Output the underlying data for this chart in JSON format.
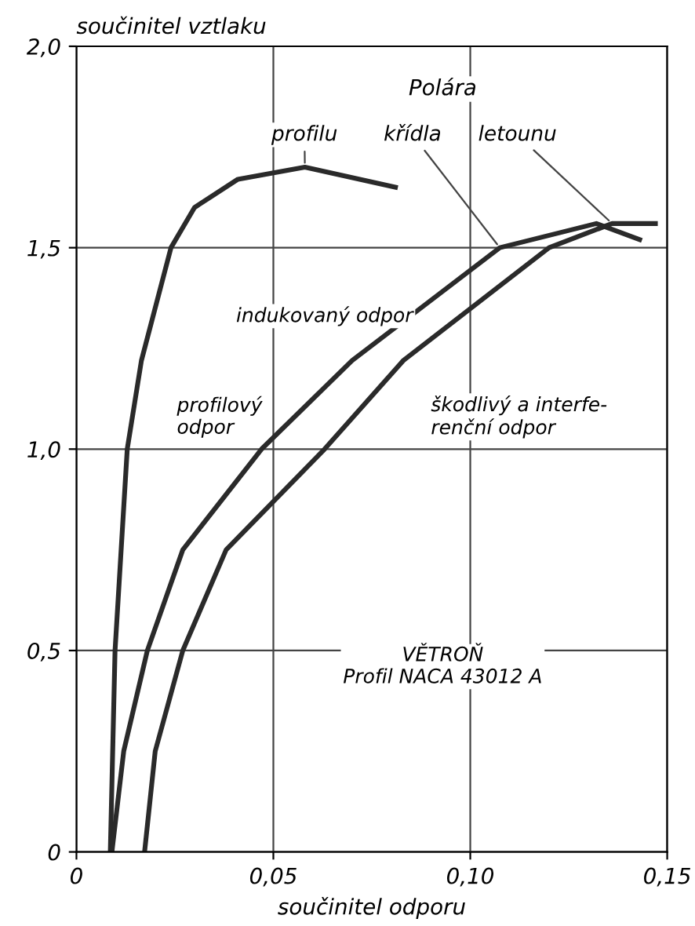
{
  "chart_data": {
    "type": "line",
    "title": "Polára",
    "xlabel": "součinitel odporu",
    "ylabel": "součinitel vztlaku",
    "xlim": [
      0,
      0.15
    ],
    "ylim": [
      0,
      2.0
    ],
    "xticks": [
      0,
      {
        "value": 0.05,
        "label": "0,05"
      },
      {
        "value": 0.1,
        "label": "0,10"
      },
      {
        "value": 0.15,
        "label": "0,15"
      }
    ],
    "yticks": [
      0,
      {
        "value": 0.5,
        "label": "0,5"
      },
      {
        "value": 1.0,
        "label": "1,0"
      },
      {
        "value": 1.5,
        "label": "1,5"
      },
      {
        "value": 2.0,
        "label": "2,0"
      }
    ],
    "grid": true,
    "legend": false,
    "marker": "none",
    "line_style": "solid",
    "series": [
      {
        "name": "profilu",
        "color": "#2a2a2a",
        "x": [
          0.0086,
          0.0098,
          0.0129,
          0.0165,
          0.024,
          0.03,
          0.041,
          0.058,
          0.081
        ],
        "values": [
          0,
          0.5,
          1.0,
          1.22,
          1.5,
          1.6,
          1.67,
          1.7,
          1.65
        ]
      },
      {
        "name": "křídla",
        "color": "#2a2a2a",
        "x": [
          0.009,
          0.012,
          0.018,
          0.027,
          0.047,
          0.07,
          0.1075,
          0.132,
          0.143
        ],
        "values": [
          0,
          0.25,
          0.5,
          0.75,
          1.0,
          1.22,
          1.5,
          1.56,
          1.52
        ]
      },
      {
        "name": "letounu",
        "color": "#2a2a2a",
        "x": [
          0.0173,
          0.02,
          0.027,
          0.038,
          0.063,
          0.083,
          0.12,
          0.136,
          0.147
        ],
        "values": [
          0,
          0.25,
          0.5,
          0.75,
          1.0,
          1.22,
          1.5,
          1.56,
          1.56
        ]
      }
    ],
    "annotations": [
      "indukovaný odpor",
      "profilový\nodpor",
      "škodlivý a interfe-\nrenční odpor",
      "VĚTROŇ\nProfil NACA 43012 A"
    ]
  }
}
